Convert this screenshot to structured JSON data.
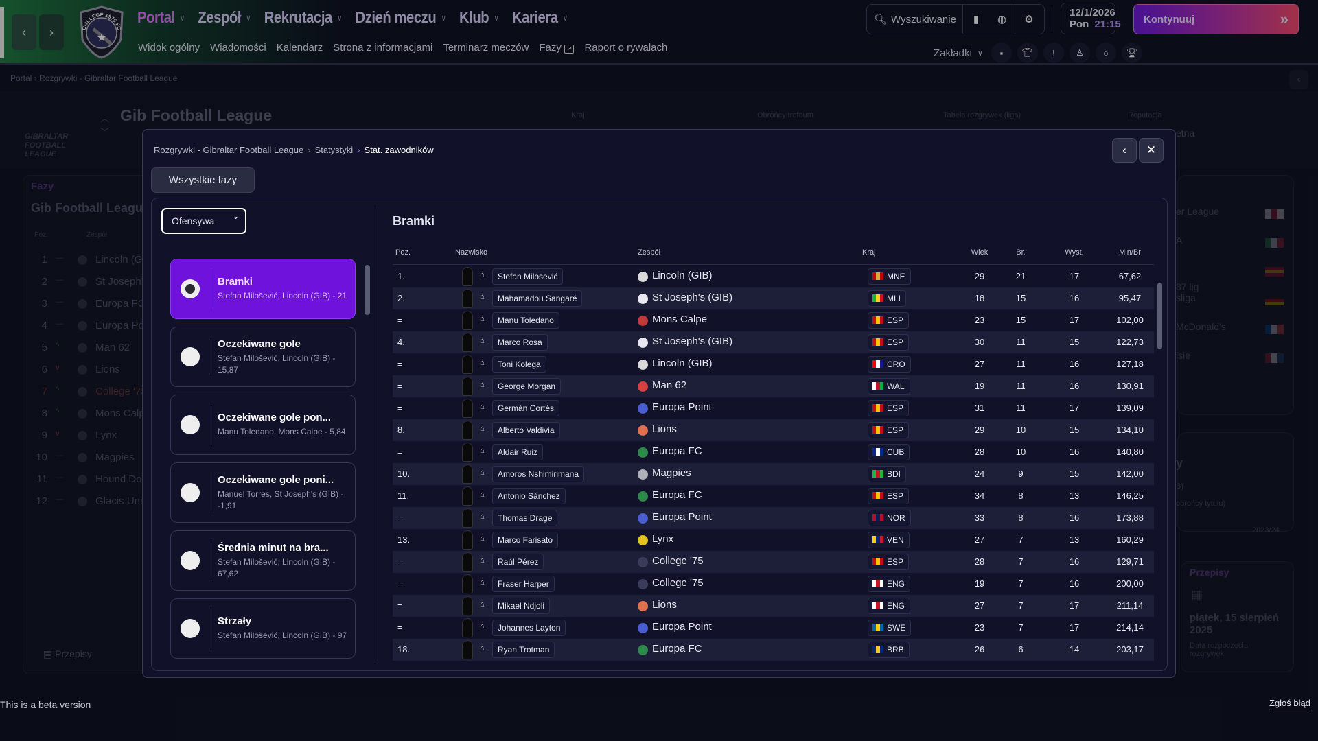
{
  "topbar": {
    "nav": [
      {
        "label": "Portal",
        "active": true
      },
      {
        "label": "Zespół"
      },
      {
        "label": "Rekrutacja"
      },
      {
        "label": "Dzień meczu"
      },
      {
        "label": "Klub"
      },
      {
        "label": "Kariera"
      }
    ],
    "subnav": [
      "Widok ogólny",
      "Wiadomości",
      "Kalendarz",
      "Strona z informacjami",
      "Terminarz meczów",
      "Fazy",
      "Raport o rywalach"
    ],
    "search_label": "Wyszukiwanie",
    "date": "12/1/2026",
    "weekday": "Pon",
    "time": "21:15",
    "continue_label": "Kontynuuj",
    "bookmarks_label": "Zakładki",
    "club_logo_text": "COLLEGE 1975 FC"
  },
  "background": {
    "breadcrumb": [
      "Portal",
      "Rozgrywki - Gibraltar Football League"
    ],
    "league_title": "Gib Football League",
    "league_logo_text": "GIBRALTAR FOOTBALL LEAGUE",
    "columns": [
      "Kraj",
      "Obrońcy trofeum",
      "Tabela rozgrywek (liga)",
      "Reputacja"
    ],
    "reputation_partial": "etna",
    "phases_label": "Fazy",
    "phases_league": "Gib Football League",
    "table_headers": [
      "Poz.",
      "Zespół"
    ],
    "table": [
      {
        "pos": "1",
        "team": "Lincoln (GIB)",
        "trend": "—"
      },
      {
        "pos": "2",
        "team": "St Joseph's (GIB)",
        "trend": "—"
      },
      {
        "pos": "3",
        "team": "Europa FC",
        "trend": "—"
      },
      {
        "pos": "4",
        "team": "Europa Point",
        "trend": "—"
      },
      {
        "pos": "5",
        "team": "Man 62",
        "trend": "^"
      },
      {
        "pos": "6",
        "team": "Lions",
        "trend": "v"
      },
      {
        "pos": "7",
        "team": "College '75",
        "trend": "^"
      },
      {
        "pos": "8",
        "team": "Mons Calpe",
        "trend": "^"
      },
      {
        "pos": "9",
        "team": "Lynx",
        "trend": "v"
      },
      {
        "pos": "10",
        "team": "Magpies",
        "trend": "—"
      },
      {
        "pos": "11",
        "team": "Hound Dogs",
        "trend": "—"
      },
      {
        "pos": "12",
        "team": "Glacis United",
        "trend": "—"
      }
    ],
    "rules_label": "Przepisy",
    "right_leagues": [
      "er League",
      "A",
      "",
      "sliga",
      "McDonald's",
      "isie"
    ],
    "right_more": "87 lig",
    "right_card2": [
      "y",
      "B)",
      "obrońcy tytułu)",
      "2023/24"
    ],
    "rules_card": {
      "title": "Przepisy",
      "date": "piątek, 15 sierpień 2025",
      "caption": "Data rozpoczęcia rozgrywek"
    }
  },
  "modal": {
    "breadcrumb": [
      "Rozgrywki - Gibraltar Football League",
      "Statystyki",
      "Stat. zawodników"
    ],
    "phase_button": "Wszystkie fazy",
    "category_select": "Ofensywa",
    "stat_cards": [
      {
        "title": "Bramki",
        "leader": "Stefan Milošević, Lincoln (GIB) - 21",
        "selected": true
      },
      {
        "title": "Oczekiwane gole",
        "leader": "Stefan Milošević, Lincoln (GIB) - 15,87"
      },
      {
        "title": "Oczekiwane gole pon...",
        "leader": "Manu Toledano, Mons Calpe - 5,84"
      },
      {
        "title": "Oczekiwane gole poni...",
        "leader": "Manuel Torres, St Joseph's (GIB) - -1,91"
      },
      {
        "title": "Średnia minut na bra...",
        "leader": "Stefan Milošević, Lincoln (GIB) - 67,62"
      },
      {
        "title": "Strzały",
        "leader": "Stefan Milošević, Lincoln (GIB) - 97"
      }
    ],
    "table_title": "Bramki",
    "headers": {
      "pos": "Poz.",
      "name": "Nazwisko",
      "team": "Zespół",
      "nation": "Kraj",
      "age": "Wiek",
      "goals": "Br.",
      "apps": "Wyst.",
      "mins": "Min/Br"
    },
    "rows": [
      {
        "pos": "1.",
        "name": "Stefan Milošević",
        "team": "Lincoln (GIB)",
        "badge": "#d9d9d9",
        "nation": "MNE",
        "flag": [
          "#c40308",
          "#d4af37",
          "#c40308"
        ],
        "age": "29",
        "goals": "21",
        "apps": "17",
        "mins": "67,62"
      },
      {
        "pos": "2.",
        "name": "Mahamadou Sangaré",
        "team": "St Joseph's (GIB)",
        "badge": "#e8e8f0",
        "nation": "MLI",
        "flag": [
          "#14b53a",
          "#fcd116",
          "#ce1126"
        ],
        "age": "18",
        "goals": "15",
        "apps": "16",
        "mins": "95,47"
      },
      {
        "pos": "=",
        "name": "Manu Toledano",
        "team": "Mons Calpe",
        "badge": "#c23a3a",
        "nation": "ESP",
        "flag": [
          "#c60b1e",
          "#ffc400",
          "#c60b1e"
        ],
        "age": "23",
        "goals": "15",
        "apps": "17",
        "mins": "102,00"
      },
      {
        "pos": "4.",
        "name": "Marco Rosa",
        "team": "St Joseph's (GIB)",
        "badge": "#e8e8f0",
        "nation": "ESP",
        "flag": [
          "#c60b1e",
          "#ffc400",
          "#c60b1e"
        ],
        "age": "30",
        "goals": "11",
        "apps": "15",
        "mins": "122,73"
      },
      {
        "pos": "=",
        "name": "Toni Kolega",
        "team": "Lincoln (GIB)",
        "badge": "#d9d9d9",
        "nation": "CRO",
        "flag": [
          "#ff0000",
          "#ffffff",
          "#171796"
        ],
        "age": "27",
        "goals": "11",
        "apps": "16",
        "mins": "127,18"
      },
      {
        "pos": "=",
        "name": "George Morgan",
        "team": "Man 62",
        "badge": "#d94040",
        "nation": "WAL",
        "flag": [
          "#ffffff",
          "#c8102e",
          "#00b140"
        ],
        "age": "19",
        "goals": "11",
        "apps": "16",
        "mins": "130,91"
      },
      {
        "pos": "=",
        "name": "Germán Cortés",
        "team": "Europa Point",
        "badge": "#4a5ed0",
        "nation": "ESP",
        "flag": [
          "#c60b1e",
          "#ffc400",
          "#c60b1e"
        ],
        "age": "31",
        "goals": "11",
        "apps": "17",
        "mins": "139,09"
      },
      {
        "pos": "8.",
        "name": "Alberto Valdivia",
        "team": "Lions",
        "badge": "#e07050",
        "nation": "ESP",
        "flag": [
          "#c60b1e",
          "#ffc400",
          "#c60b1e"
        ],
        "age": "29",
        "goals": "10",
        "apps": "15",
        "mins": "134,10"
      },
      {
        "pos": "=",
        "name": "Aldair Ruiz",
        "team": "Europa FC",
        "badge": "#2e8a4a",
        "nation": "CUB",
        "flag": [
          "#002a8f",
          "#ffffff",
          "#002a8f"
        ],
        "age": "28",
        "goals": "10",
        "apps": "16",
        "mins": "140,80"
      },
      {
        "pos": "10.",
        "name": "Amoros Nshimirimana",
        "team": "Magpies",
        "badge": "#b0b0b8",
        "nation": "BDI",
        "flag": [
          "#1eb53a",
          "#ce1126",
          "#1eb53a"
        ],
        "age": "24",
        "goals": "9",
        "apps": "15",
        "mins": "142,00"
      },
      {
        "pos": "11.",
        "name": "Antonio Sánchez",
        "team": "Europa FC",
        "badge": "#2e8a4a",
        "nation": "ESP",
        "flag": [
          "#c60b1e",
          "#ffc400",
          "#c60b1e"
        ],
        "age": "34",
        "goals": "8",
        "apps": "13",
        "mins": "146,25"
      },
      {
        "pos": "=",
        "name": "Thomas Drage",
        "team": "Europa Point",
        "badge": "#4a5ed0",
        "nation": "NOR",
        "flag": [
          "#ba0c2f",
          "#00205b",
          "#ba0c2f"
        ],
        "age": "33",
        "goals": "8",
        "apps": "16",
        "mins": "173,88"
      },
      {
        "pos": "13.",
        "name": "Marco Farisato",
        "team": "Lynx",
        "badge": "#e2c21e",
        "nation": "VEN",
        "flag": [
          "#ffcc00",
          "#00247d",
          "#cf142b"
        ],
        "age": "27",
        "goals": "7",
        "apps": "13",
        "mins": "160,29"
      },
      {
        "pos": "=",
        "name": "Raúl Pérez",
        "team": "College '75",
        "badge": "#3a3c5a",
        "nation": "ESP",
        "flag": [
          "#c60b1e",
          "#ffc400",
          "#c60b1e"
        ],
        "age": "28",
        "goals": "7",
        "apps": "16",
        "mins": "129,71"
      },
      {
        "pos": "=",
        "name": "Fraser Harper",
        "team": "College '75",
        "badge": "#3a3c5a",
        "nation": "ENG",
        "flag": [
          "#ffffff",
          "#ce1124",
          "#ffffff"
        ],
        "age": "19",
        "goals": "7",
        "apps": "16",
        "mins": "200,00"
      },
      {
        "pos": "=",
        "name": "Mikael Ndjoli",
        "team": "Lions",
        "badge": "#e07050",
        "nation": "ENG",
        "flag": [
          "#ffffff",
          "#ce1124",
          "#ffffff"
        ],
        "age": "27",
        "goals": "7",
        "apps": "17",
        "mins": "211,14"
      },
      {
        "pos": "=",
        "name": "Johannes Layton",
        "team": "Europa Point",
        "badge": "#4a5ed0",
        "nation": "SWE",
        "flag": [
          "#006aa7",
          "#fecc00",
          "#006aa7"
        ],
        "age": "23",
        "goals": "7",
        "apps": "17",
        "mins": "214,14"
      },
      {
        "pos": "18.",
        "name": "Ryan Trotman",
        "team": "Europa FC",
        "badge": "#2e8a4a",
        "nation": "BRB",
        "flag": [
          "#00267f",
          "#ffc726",
          "#00267f"
        ],
        "age": "26",
        "goals": "6",
        "apps": "14",
        "mins": "203,17"
      }
    ]
  },
  "footer": {
    "beta": "This is a beta version",
    "report": "Zgłoś błąd"
  },
  "colors": {
    "accent": "#6e12dc",
    "nav_active": "#d877f2",
    "continue_start": "#6a16d8",
    "continue_end": "#f34766"
  }
}
